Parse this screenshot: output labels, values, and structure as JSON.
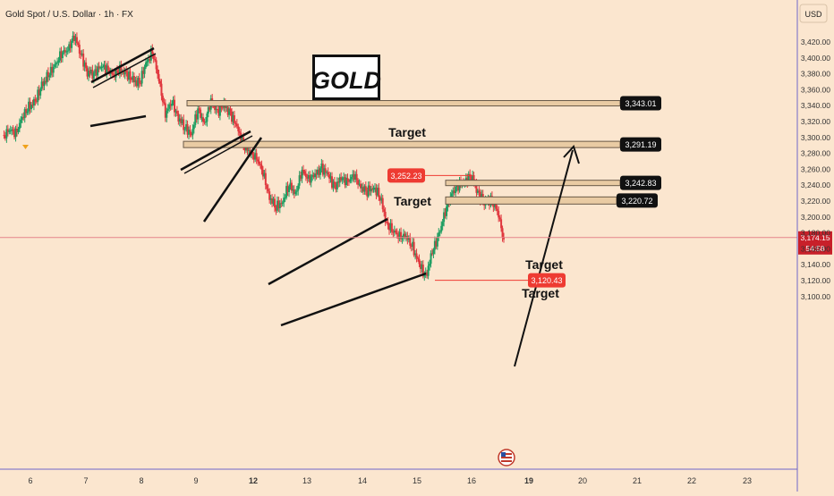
{
  "header": {
    "symbol_title": "Gold Spot / U.S. Dollar · 1h · FX"
  },
  "currency_button": "USD",
  "badge_title": "GOLD",
  "chart_data": {
    "type": "candlestick",
    "title": "Gold Spot / U.S. Dollar · 1h · FX",
    "ylim": [
      3100,
      3440
    ],
    "y_ticks": [
      "3,420.00",
      "3,400.00",
      "3,380.00",
      "3,360.00",
      "3,340.00",
      "3,320.00",
      "3,300.00",
      "3,280.00",
      "3,260.00",
      "3,240.00",
      "3,220.00",
      "3,200.00",
      "3,180.00",
      "3,160.00",
      "3,140.00",
      "3,120.00",
      "3,100.00"
    ],
    "y_tick_values": [
      3420,
      3400,
      3380,
      3360,
      3340,
      3320,
      3300,
      3280,
      3260,
      3240,
      3220,
      3200,
      3180,
      3160,
      3140,
      3120,
      3100
    ],
    "x_ticks": [
      "6",
      "7",
      "8",
      "9",
      "12",
      "13",
      "14",
      "15",
      "16",
      "19",
      "20",
      "21",
      "22",
      "23"
    ],
    "x_tick_bold": [
      "12",
      "19"
    ],
    "close_path": [
      3300,
      3310,
      3305,
      3325,
      3338,
      3345,
      3365,
      3378,
      3390,
      3405,
      3410,
      3428,
      3405,
      3382,
      3380,
      3390,
      3386,
      3378,
      3385,
      3380,
      3372,
      3368,
      3392,
      3408,
      3372,
      3330,
      3345,
      3325,
      3312,
      3305,
      3335,
      3318,
      3345,
      3332,
      3340,
      3330,
      3312,
      3290,
      3280,
      3275,
      3255,
      3225,
      3212,
      3220,
      3240,
      3230,
      3258,
      3248,
      3252,
      3262,
      3252,
      3238,
      3248,
      3245,
      3252,
      3238,
      3232,
      3238,
      3225,
      3192,
      3182,
      3176,
      3175,
      3162,
      3140,
      3125,
      3155,
      3178,
      3206,
      3230,
      3240,
      3245,
      3252,
      3232,
      3218,
      3222,
      3208,
      3172
    ],
    "last_price_label": "3,174.15",
    "countdown_label": "54:58",
    "last_price": 3174.15,
    "price_tags": [
      {
        "label": "3,252.23",
        "value": 3252.23,
        "color": "#ee3b32"
      },
      {
        "label": "3,120.43",
        "value": 3120.43,
        "color": "#ee3b32"
      }
    ],
    "targets": [
      {
        "text": "Target",
        "value": 3343.01,
        "label": "3,343.01"
      },
      {
        "text": "Target",
        "value": 3291.19,
        "label": "3,291.19"
      },
      {
        "text": "Target",
        "value": 3242.83,
        "label": "3,242.83"
      },
      {
        "text": "Target",
        "value": 3220.72,
        "label": "3,220.72"
      }
    ],
    "colors": {
      "up": "#1e9e62",
      "down": "#e0373e",
      "background": "#fbe6cf",
      "zone_fill": "#e9cba3",
      "zone_stroke": "#6a5a48",
      "price_line": "#e4848a",
      "axis_border": "#6f66c8"
    }
  }
}
